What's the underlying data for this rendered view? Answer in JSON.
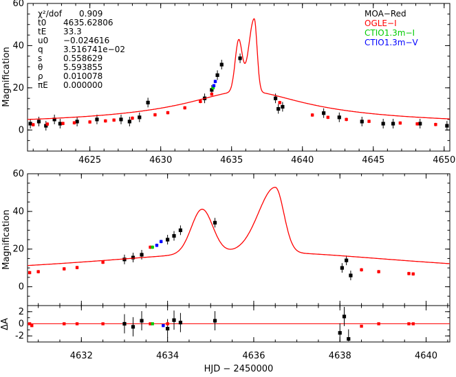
{
  "chart_data": [
    {
      "type": "scatter",
      "title": "",
      "xlabel": "",
      "ylabel": "Magnification",
      "xlim": [
        4620.6,
        4650.4
      ],
      "ylim": [
        -10,
        60
      ],
      "xticks": [
        4625,
        4630,
        4635,
        4640,
        4645,
        4650
      ],
      "yticks": [
        0,
        20,
        40,
        60
      ],
      "model_peaks": [
        {
          "x": 4635.5,
          "y": 38
        },
        {
          "x": 4636.6,
          "y": 52.5
        }
      ],
      "params": [
        {
          "name": "χ²/dof",
          "value": "0.909"
        },
        {
          "name": "t0",
          "value": "4635.62806"
        },
        {
          "name": "tE",
          "value": "33.3"
        },
        {
          "name": "u0",
          "value": "−0.024616"
        },
        {
          "name": "q",
          "value": "3.516741e−02"
        },
        {
          "name": "s",
          "value": "0.558629"
        },
        {
          "name": "θ",
          "value": "5.593855"
        },
        {
          "name": "ρ",
          "value": "0.010078"
        },
        {
          "name": "πE",
          "value": "0.000000"
        }
      ],
      "legend": [
        {
          "label": "MOA−Red",
          "color": "#000000"
        },
        {
          "label": "OGLE−I",
          "color": "#ff0000"
        },
        {
          "label": "CTIO1.3m−I",
          "color": "#00cc00"
        },
        {
          "label": "CTIO1.3m−V",
          "color": "#0000ff"
        }
      ],
      "series": [
        {
          "name": "MOA−Red",
          "x": [
            4620.8,
            4621.4,
            4621.9,
            4622.5,
            4622.9,
            4624.1,
            4625.5,
            4627.2,
            4627.8,
            4628.5,
            4629.1,
            4633.1,
            4633.6,
            4634.0,
            4634.3,
            4635.6,
            4638.1,
            4638.3,
            4638.6,
            4641.5,
            4642.6,
            4644.2,
            4645.7,
            4646.4,
            4648.3,
            4650.2
          ],
          "y": [
            3,
            4,
            2,
            5,
            3,
            4,
            5,
            5,
            4,
            6,
            13,
            15,
            19,
            26,
            31,
            34,
            15,
            10,
            11,
            8,
            6,
            4,
            3,
            3,
            3,
            2
          ]
        },
        {
          "name": "OGLE−I",
          "x": [
            4621.0,
            4622.0,
            4623.1,
            4623.9,
            4625.0,
            4626.1,
            4626.7,
            4628.0,
            4629.6,
            4630.5,
            4631.7,
            4632.8,
            4633.6,
            4638.4,
            4640.7,
            4641.8,
            4643.1,
            4644.7,
            4646.9,
            4648.1,
            4649.4
          ],
          "y": [
            2.5,
            2.8,
            3.1,
            3.4,
            3.8,
            4.3,
            4.7,
            5.6,
            7.2,
            8.2,
            10.5,
            13.5,
            17,
            13,
            7.1,
            6.0,
            5.0,
            4.1,
            3.3,
            2.9,
            2.6
          ]
        },
        {
          "name": "CTIO1.3m−I",
          "x": [
            4633.7
          ],
          "y": [
            20
          ]
        },
        {
          "name": "CTIO1.3m−V",
          "x": [
            4633.75,
            4633.85
          ],
          "y": [
            21,
            23
          ]
        }
      ]
    },
    {
      "type": "scatter",
      "title": "",
      "xlabel": "",
      "ylabel": "Magnification",
      "xlim": [
        4630.75,
        4640.55
      ],
      "ylim": [
        -10,
        60
      ],
      "xticks": [
        4632,
        4634,
        4636,
        4638,
        4640
      ],
      "yticks": [
        0,
        20,
        40,
        60
      ],
      "model_peaks": [
        {
          "x": 4634.8,
          "y": 37.5
        },
        {
          "x": 4636.5,
          "y": 52.5
        }
      ],
      "series": [
        {
          "name": "MOA−Red",
          "x": [
            4633.0,
            4633.2,
            4633.4,
            4634.0,
            4634.15,
            4634.3,
            4635.1,
            4638.05,
            4638.15,
            4638.25
          ],
          "y": [
            14.5,
            15.5,
            17,
            25,
            27,
            30,
            34,
            10,
            14,
            6
          ]
        },
        {
          "name": "OGLE−I",
          "x": [
            4630.8,
            4631.0,
            4631.6,
            4631.9,
            4632.5,
            4633.6,
            4638.5,
            4638.9,
            4639.6,
            4639.7
          ],
          "y": [
            7.5,
            8.0,
            9.5,
            10.2,
            13,
            21,
            9,
            8,
            7,
            6.8
          ]
        },
        {
          "name": "CTIO1.3m−I",
          "x": [
            4633.65
          ],
          "y": [
            21
          ]
        },
        {
          "name": "CTIO1.3m−V",
          "x": [
            4633.75,
            4633.85
          ],
          "y": [
            22,
            24
          ]
        }
      ]
    },
    {
      "type": "scatter",
      "title": "",
      "xlabel": "HJD − 2450000",
      "ylabel": "ΔA",
      "xlim": [
        4630.75,
        4640.55
      ],
      "ylim": [
        -3,
        3
      ],
      "xticks": [
        4632,
        4634,
        4636,
        4638,
        4640
      ],
      "yticks": [
        -2,
        0,
        2
      ],
      "series": [
        {
          "name": "MOA−Red",
          "x": [
            4633.0,
            4633.2,
            4633.4,
            4634.0,
            4634.15,
            4634.3,
            4635.1,
            4638.0,
            4638.1,
            4638.2
          ],
          "y": [
            0,
            -0.5,
            0.5,
            -0.8,
            0.6,
            0.2,
            0.5,
            -1.5,
            1.2,
            -2.5
          ]
        },
        {
          "name": "OGLE−I",
          "x": [
            4630.8,
            4630.85,
            4631.6,
            4631.9,
            4632.5,
            4633.6,
            4634.0,
            4638.5,
            4638.9,
            4639.6,
            4639.7
          ],
          "y": [
            0,
            -0.3,
            0,
            0,
            0,
            0,
            0,
            -0.4,
            0,
            0,
            0
          ]
        },
        {
          "name": "CTIO1.3m−I",
          "x": [
            4633.65
          ],
          "y": [
            0
          ]
        },
        {
          "name": "CTIO1.3m−V",
          "x": [
            4633.9
          ],
          "y": [
            -0.3
          ]
        }
      ]
    }
  ]
}
